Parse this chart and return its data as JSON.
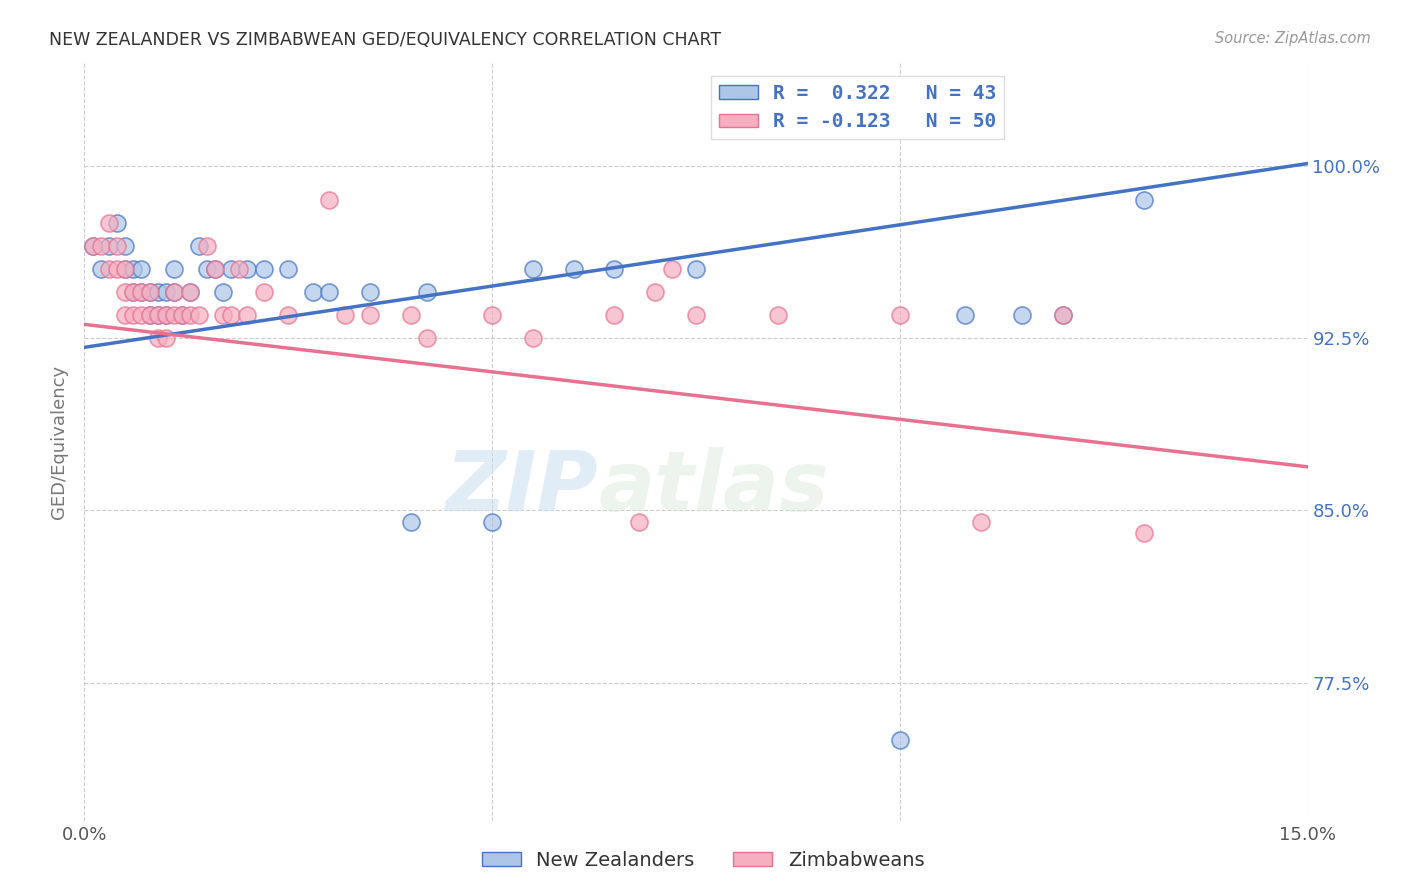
{
  "title": "NEW ZEALANDER VS ZIMBABWEAN GED/EQUIVALENCY CORRELATION CHART",
  "source": "Source: ZipAtlas.com",
  "ylabel": "GED/Equivalency",
  "ytick_labels": [
    "77.5%",
    "85.0%",
    "92.5%",
    "100.0%"
  ],
  "ytick_values": [
    0.775,
    0.85,
    0.925,
    1.0
  ],
  "xmin": 0.0,
  "xmax": 0.15,
  "ymin": 0.715,
  "ymax": 1.045,
  "color_nz": "#adc6e8",
  "color_zim": "#f5afc0",
  "color_line_nz": "#4472c4",
  "color_line_zim": "#e87090",
  "nz_line_y0": 0.921,
  "nz_line_y1": 1.001,
  "zim_line_y0": 0.931,
  "zim_line_y1": 0.869,
  "nz_x": [
    0.001,
    0.002,
    0.003,
    0.004,
    0.005,
    0.005,
    0.006,
    0.006,
    0.007,
    0.007,
    0.008,
    0.008,
    0.009,
    0.009,
    0.01,
    0.01,
    0.011,
    0.011,
    0.012,
    0.013,
    0.014,
    0.015,
    0.016,
    0.017,
    0.018,
    0.02,
    0.022,
    0.025,
    0.028,
    0.03,
    0.035,
    0.04,
    0.042,
    0.05,
    0.055,
    0.06,
    0.065,
    0.075,
    0.1,
    0.108,
    0.115,
    0.12,
    0.13
  ],
  "nz_y": [
    0.965,
    0.955,
    0.965,
    0.975,
    0.965,
    0.955,
    0.945,
    0.955,
    0.955,
    0.945,
    0.945,
    0.935,
    0.945,
    0.935,
    0.945,
    0.935,
    0.945,
    0.955,
    0.935,
    0.945,
    0.965,
    0.955,
    0.955,
    0.945,
    0.955,
    0.955,
    0.955,
    0.955,
    0.945,
    0.945,
    0.945,
    0.845,
    0.945,
    0.845,
    0.955,
    0.955,
    0.955,
    0.955,
    0.75,
    0.935,
    0.935,
    0.935,
    0.985
  ],
  "zim_x": [
    0.001,
    0.002,
    0.003,
    0.003,
    0.004,
    0.004,
    0.005,
    0.005,
    0.005,
    0.006,
    0.006,
    0.007,
    0.007,
    0.008,
    0.008,
    0.009,
    0.009,
    0.01,
    0.01,
    0.011,
    0.011,
    0.012,
    0.013,
    0.013,
    0.014,
    0.015,
    0.016,
    0.017,
    0.018,
    0.019,
    0.02,
    0.022,
    0.025,
    0.03,
    0.032,
    0.035,
    0.04,
    0.042,
    0.05,
    0.055,
    0.065,
    0.068,
    0.07,
    0.072,
    0.075,
    0.085,
    0.1,
    0.11,
    0.12,
    0.13
  ],
  "zim_y": [
    0.965,
    0.965,
    0.975,
    0.955,
    0.965,
    0.955,
    0.955,
    0.945,
    0.935,
    0.945,
    0.935,
    0.945,
    0.935,
    0.945,
    0.935,
    0.935,
    0.925,
    0.935,
    0.925,
    0.945,
    0.935,
    0.935,
    0.945,
    0.935,
    0.935,
    0.965,
    0.955,
    0.935,
    0.935,
    0.955,
    0.935,
    0.945,
    0.935,
    0.985,
    0.935,
    0.935,
    0.935,
    0.925,
    0.935,
    0.925,
    0.935,
    0.845,
    0.945,
    0.955,
    0.935,
    0.935,
    0.935,
    0.845,
    0.935,
    0.84
  ],
  "watermark_zip": "ZIP",
  "watermark_atlas": "atlas",
  "background_color": "#ffffff",
  "grid_color": "#cccccc",
  "legend_r1_label": "R =  0.322   N = 43",
  "legend_r2_label": "R = -0.123   N = 50"
}
